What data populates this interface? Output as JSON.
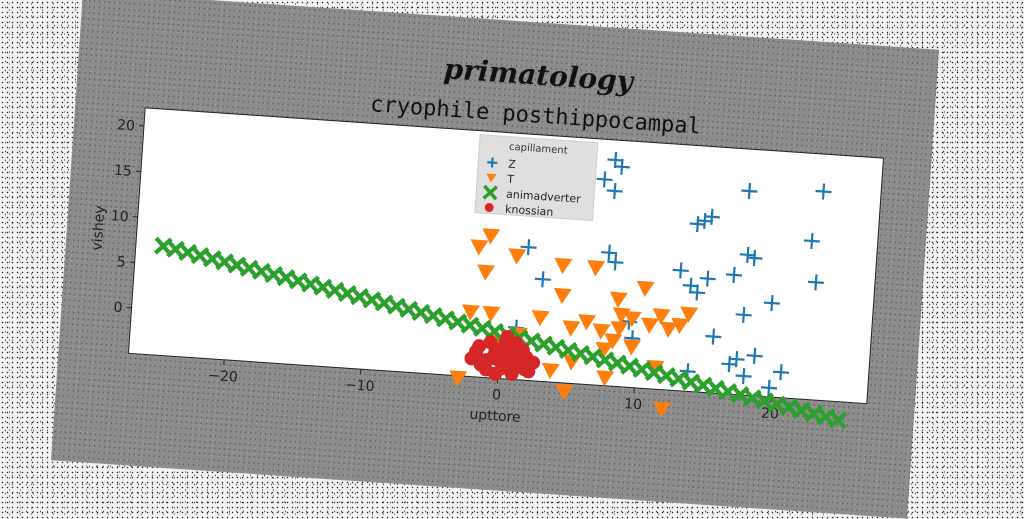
{
  "chart_data": {
    "type": "scatter",
    "suptitle": "primatology",
    "title": "cryophile posthippocampal",
    "xlabel": "upttore",
    "ylabel": "vishey",
    "xlim": [
      -27,
      27
    ],
    "ylim": [
      -5,
      22
    ],
    "xticks": [
      -20,
      -10,
      0,
      10,
      20
    ],
    "yticks": [
      0,
      5,
      10,
      15,
      20
    ],
    "grid": false,
    "legend": {
      "title": "capillament",
      "placement": "upper-center"
    },
    "series": [
      {
        "name": "Z",
        "marker": "plus",
        "color": "#1f77b4",
        "points": [
          [
            7.5,
            19.8
          ],
          [
            8.0,
            19.1
          ],
          [
            6.8,
            17.6
          ],
          [
            7.6,
            16.4
          ],
          [
            17.4,
            17.4
          ],
          [
            22.8,
            17.9
          ],
          [
            14.8,
            14.3
          ],
          [
            14.3,
            13.8
          ],
          [
            13.8,
            13.4
          ],
          [
            22.2,
            12.4
          ],
          [
            17.6,
            10.4
          ],
          [
            18.1,
            10.1
          ],
          [
            7.5,
            9.6
          ],
          [
            8.0,
            8.6
          ],
          [
            12.8,
            8.2
          ],
          [
            16.7,
            8.1
          ],
          [
            22.7,
            7.9
          ],
          [
            14.8,
            7.5
          ],
          [
            13.6,
            6.6
          ],
          [
            14.1,
            5.9
          ],
          [
            2.8,
            6.2
          ],
          [
            19.6,
            5.3
          ],
          [
            17.6,
            3.8
          ],
          [
            9.3,
            2.2
          ],
          [
            15.5,
            1.2
          ],
          [
            1.1,
            0.7
          ],
          [
            9.6,
            0.4
          ],
          [
            18.6,
            -0.6
          ],
          [
            17.3,
            -1.1
          ],
          [
            16.8,
            -1.7
          ],
          [
            20.6,
            -2.2
          ],
          [
            13.8,
            -2.8
          ],
          [
            17.9,
            -2.9
          ],
          [
            19.8,
            -4.0
          ],
          [
            1.6,
            9.6
          ]
        ]
      },
      {
        "name": "T",
        "marker": "triangle-down",
        "color": "#ff7f0e",
        "points": [
          [
            -1.2,
            10.6
          ],
          [
            -2.0,
            9.3
          ],
          [
            0.8,
            8.6
          ],
          [
            4.2,
            7.9
          ],
          [
            6.6,
            7.9
          ],
          [
            -1.4,
            6.6
          ],
          [
            10.3,
            6.0
          ],
          [
            8.4,
            4.6
          ],
          [
            4.3,
            4.6
          ],
          [
            13.6,
            3.5
          ],
          [
            11.6,
            3.1
          ],
          [
            8.7,
            2.9
          ],
          [
            9.5,
            2.6
          ],
          [
            -2.3,
            2.1
          ],
          [
            -0.8,
            2.1
          ],
          [
            2.8,
            2.0
          ],
          [
            6.2,
            1.9
          ],
          [
            10.8,
            2.0
          ],
          [
            13.0,
            2.2
          ],
          [
            12.2,
            1.7
          ],
          [
            8.6,
            1.4
          ],
          [
            5.1,
            1.1
          ],
          [
            7.3,
            1.0
          ],
          [
            1.3,
            0.0
          ],
          [
            8.2,
            0.0
          ],
          [
            7.6,
            -1.0
          ],
          [
            9.6,
            -0.5
          ],
          [
            0.0,
            -1.0
          ],
          [
            5.3,
            -2.6
          ],
          [
            11.4,
            -2.6
          ],
          [
            3.8,
            -3.7
          ],
          [
            7.8,
            -4.1
          ],
          [
            -2.9,
            -5.2
          ],
          [
            4.9,
            -5.9
          ],
          [
            12.1,
            -7.1
          ]
        ]
      },
      {
        "name": "animadverter",
        "marker": "x-filled",
        "color": "#2ca02c",
        "line": {
          "slope": -0.28,
          "intercept": 0.0,
          "from": -25,
          "to": 25,
          "count": 56
        }
      },
      {
        "name": "knossian",
        "marker": "circle",
        "color": "#d62728",
        "points": [
          [
            0.0,
            -2.3
          ],
          [
            0.8,
            -1.6
          ],
          [
            -1.0,
            -3.1
          ],
          [
            1.5,
            -3.4
          ],
          [
            -0.2,
            -4.5
          ],
          [
            0.5,
            -0.4
          ],
          [
            2.0,
            -2.5
          ],
          [
            -1.7,
            -2.2
          ],
          [
            1.2,
            -1.0
          ],
          [
            -0.7,
            -1.1
          ],
          [
            0.3,
            -3.8
          ],
          [
            1.9,
            -3.8
          ],
          [
            -1.3,
            -3.6
          ],
          [
            0.9,
            -2.6
          ],
          [
            -0.5,
            -2.8
          ],
          [
            1.7,
            -1.7
          ],
          [
            2.5,
            -3.0
          ],
          [
            -2.0,
            -3.0
          ],
          [
            0.1,
            -1.8
          ],
          [
            1.0,
            -4.4
          ],
          [
            -0.9,
            -4.1
          ],
          [
            0.6,
            -3.2
          ],
          [
            1.3,
            -2.0
          ],
          [
            -1.5,
            -1.6
          ],
          [
            2.2,
            -4.0
          ],
          [
            0.0,
            -3.0
          ],
          [
            0.8,
            -3.5
          ],
          [
            -0.3,
            -2.1
          ],
          [
            1.6,
            -2.8
          ],
          [
            0.4,
            -1.1
          ]
        ]
      }
    ]
  }
}
